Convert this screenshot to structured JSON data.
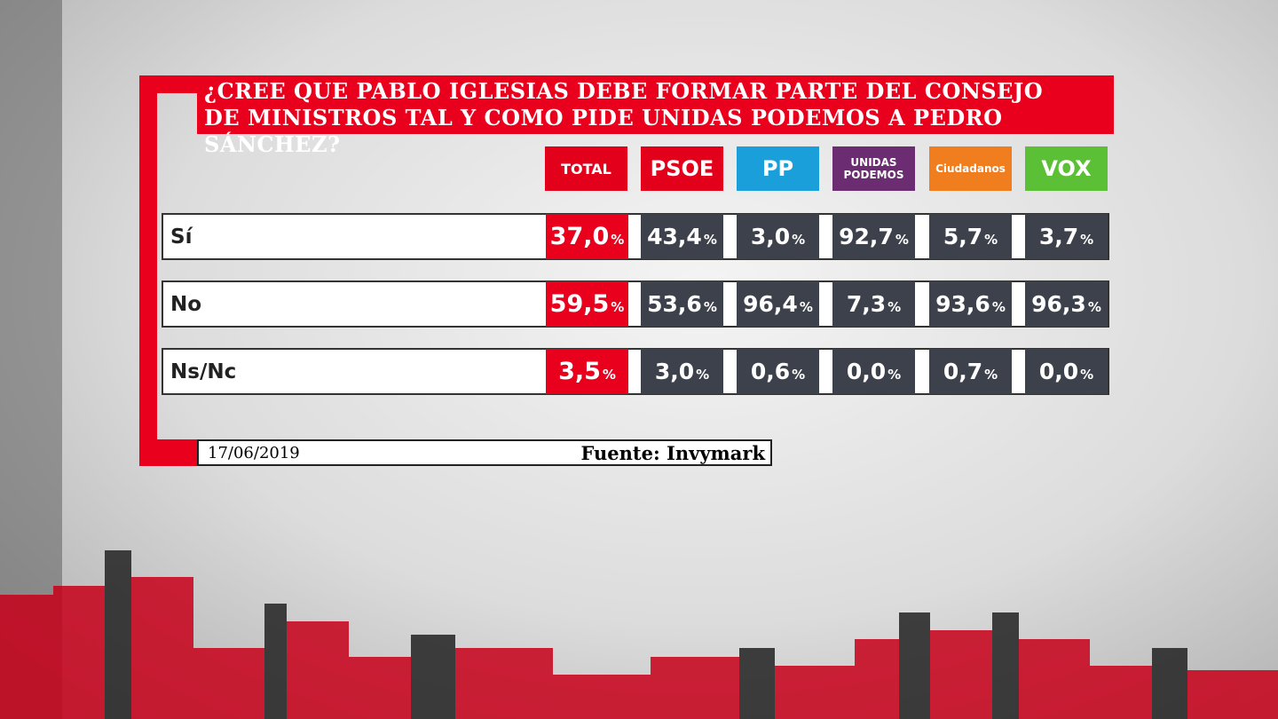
{
  "title": {
    "lines": [
      "¿CREE QUE PABLO IGLESIAS DEBE FORMAR PARTE DEL CONSEJO",
      "DE MINISTROS TAL Y COMO PIDE UNIDAS PODEMOS A PEDRO SÁNCHEZ?"
    ]
  },
  "table": {
    "columns": [
      {
        "label": "TOTAL",
        "color": "#e3001b"
      },
      {
        "label": "PSOE",
        "color": "#e3001b"
      },
      {
        "label": "PP",
        "color": "#1a9fdb"
      },
      {
        "label": "UNIDAS PODEMOS",
        "color": "#6b2c72"
      },
      {
        "label": "Ciudadanos",
        "color": "#f07d1e"
      },
      {
        "label": "VOX",
        "color": "#5bc035"
      }
    ],
    "rows": [
      {
        "label": "Sí",
        "cells": [
          {
            "value": "37,0",
            "unit": "%"
          },
          {
            "value": "43,4",
            "unit": "%"
          },
          {
            "value": "3,0",
            "unit": "%"
          },
          {
            "value": "92,7",
            "unit": "%"
          },
          {
            "value": "5,7",
            "unit": "%"
          },
          {
            "value": "3,7",
            "unit": "%"
          }
        ]
      },
      {
        "label": "No",
        "cells": [
          {
            "value": "59,5",
            "unit": "%"
          },
          {
            "value": "53,6",
            "unit": "%"
          },
          {
            "value": "96,4",
            "unit": "%"
          },
          {
            "value": "7,3",
            "unit": "%"
          },
          {
            "value": "93,6",
            "unit": "%"
          },
          {
            "value": "96,3",
            "unit": "%"
          }
        ]
      },
      {
        "label": "Ns/Nc",
        "cells": [
          {
            "value": "3,5",
            "unit": "%"
          },
          {
            "value": "3,0",
            "unit": "%"
          },
          {
            "value": "0,6",
            "unit": "%"
          },
          {
            "value": "0,0",
            "unit": "%"
          },
          {
            "value": "0,7",
            "unit": "%"
          },
          {
            "value": "0,0",
            "unit": "%"
          }
        ]
      }
    ]
  },
  "footer": {
    "date": "17/06/2019",
    "source": "Fuente: Invymark"
  }
}
